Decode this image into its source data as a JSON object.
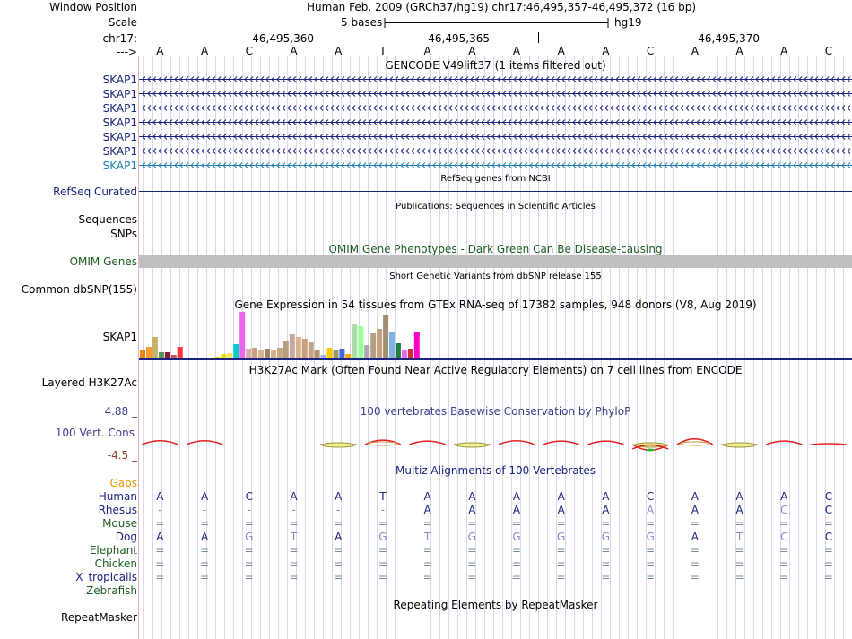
{
  "labels": {
    "window_position": "Window Position",
    "scale": "Scale",
    "chromosome": "chr17:",
    "strand_arrow": "--->"
  },
  "header": {
    "position_text": "Human Feb. 2009 (GRCh37/hg19)   chr17:46,495,357-46,495,372 (16 bp)",
    "scale_text": "5 bases",
    "assembly": "hg19",
    "ruler": [
      {
        "label": "46,495,360"
      },
      {
        "label": "46,495,365"
      },
      {
        "label": "46,495,370"
      }
    ]
  },
  "reference_sequence": [
    "A",
    "A",
    "C",
    "A",
    "A",
    "T",
    "A",
    "A",
    "A",
    "A",
    "A",
    "C",
    "A",
    "A",
    "A",
    "C"
  ],
  "tracks": {
    "gencode": {
      "title": "GENCODE V49lift37 (1 items filtered out)",
      "transcripts": [
        {
          "label": "SKAP1",
          "color": "#1a237e"
        },
        {
          "label": "SKAP1",
          "color": "#1a237e"
        },
        {
          "label": "SKAP1",
          "color": "#1a237e"
        },
        {
          "label": "SKAP1",
          "color": "#1a237e"
        },
        {
          "label": "SKAP1",
          "color": "#1a237e"
        },
        {
          "label": "SKAP1",
          "color": "#1a237e"
        },
        {
          "label": "SKAP1",
          "color": "#1f7fb4"
        }
      ]
    },
    "refseq": {
      "title": "RefSeq genes from NCBI",
      "label": "RefSeq Curated"
    },
    "publications": {
      "title": "Publications: Sequences in Scientific Articles",
      "label": "Sequences"
    },
    "snps": {
      "label": "SNPs"
    },
    "omim": {
      "title": "OMIM Gene Phenotypes - Dark Green Can Be Disease-causing",
      "label": "OMIM Genes"
    },
    "dbsnp": {
      "title": "Short Genetic Variants from dbSNP release 155",
      "label": "Common dbSNP(155)"
    },
    "gtex": {
      "title": "Gene Expression in 54 tissues from GTEx RNA-seq of 17382 samples, 948 donors (V8, Aug 2019)",
      "label": "SKAP1"
    },
    "h3k27ac": {
      "title": "H3K27Ac Mark (Often Found Near Active Regulatory Elements) on 7 cell lines from ENCODE",
      "label": "Layered H3K27Ac"
    },
    "conservation": {
      "title": "100 vertebrates Basewise Conservation by PhyloP",
      "label": "100 Vert. Cons",
      "ymax_label": "4.88 _",
      "ymin_label": "-4.5 _"
    },
    "multiz": {
      "title": "Multiz Alignments of 100 Vertebrates",
      "gaps_label": "Gaps",
      "species": [
        {
          "name": "Human",
          "color": "#1a237e",
          "bases": [
            "A",
            "A",
            "C",
            "A",
            "A",
            "T",
            "A",
            "A",
            "A",
            "A",
            "A",
            "C",
            "A",
            "A",
            "A",
            "C"
          ]
        },
        {
          "name": "Rhesus",
          "color": "#1a237e",
          "bases": [
            "-",
            "-",
            "-",
            "-",
            "-",
            "-",
            "A",
            "A",
            "A",
            "A",
            "A",
            "A",
            "A",
            "A",
            "C",
            "C"
          ]
        },
        {
          "name": "Mouse",
          "color": "#1b5e20",
          "bases": [
            "=",
            "=",
            "=",
            "=",
            "=",
            "=",
            "=",
            "=",
            "=",
            "=",
            "=",
            "=",
            "=",
            "=",
            "=",
            "="
          ]
        },
        {
          "name": "Dog",
          "color": "#1a237e",
          "bases": [
            "A",
            "A",
            "G",
            "T",
            "A",
            "G",
            "T",
            "G",
            "G",
            "G",
            "G",
            "G",
            "A",
            "T",
            "C",
            "C"
          ]
        },
        {
          "name": "Elephant",
          "color": "#1b5e20",
          "bases": [
            "=",
            "=",
            "=",
            "=",
            "=",
            "=",
            "=",
            "=",
            "=",
            "=",
            "=",
            "=",
            "=",
            "=",
            "=",
            "="
          ]
        },
        {
          "name": "Chicken",
          "color": "#1b5e20",
          "bases": [
            "=",
            "=",
            "=",
            "=",
            "=",
            "=",
            "=",
            "=",
            "=",
            "=",
            "=",
            "=",
            "=",
            "=",
            "=",
            "="
          ]
        },
        {
          "name": "X_tropicalis",
          "color": "#1a237e",
          "bases": [
            "=",
            "=",
            "=",
            "=",
            "=",
            "=",
            "=",
            "=",
            "=",
            "=",
            "=",
            "=",
            "=",
            "=",
            "=",
            "="
          ]
        },
        {
          "name": "Zebrafish",
          "color": "#1b5e20",
          "bases": []
        }
      ]
    },
    "repeatmasker": {
      "title": "Repeating Elements by RepeatMasker",
      "label": "RepeatMasker"
    }
  },
  "gtex_expression": {
    "colors": [
      "#e6861c",
      "#ff9a33",
      "#c7b26b",
      "#4e9a56",
      "#8b1a3c",
      "#c25b5b",
      "#ff3333",
      "#999999",
      "#cc9966",
      "#c8a080",
      "#c0c0c0",
      "#9999ff",
      "#ffd700",
      "#e0e000",
      "#ffe066",
      "#00cccc",
      "#ee66ee",
      "#ddaaaa",
      "#c8a080",
      "#d9b38c",
      "#a08060",
      "#d2b48c",
      "#c8a87e",
      "#b3a080",
      "#c8a8a0",
      "#d9b38c",
      "#c8a080",
      "#c4a484",
      "#b39170",
      "#aaaaff",
      "#ffcc00",
      "#999966",
      "#4169e1",
      "#ffaa00",
      "#aaddaa",
      "#99ff99",
      "#aaaaaa",
      "#b3a080",
      "#c8a080",
      "#a08f70",
      "#7fb2e5",
      "#1f7f3f",
      "#ee66ee",
      "#cc3333",
      "#ff00cc"
    ],
    "values": [
      9,
      13,
      24,
      7,
      7,
      4,
      13,
      1,
      1,
      1,
      1,
      1,
      2,
      5,
      6,
      16,
      52,
      11,
      12,
      9,
      11,
      10,
      12,
      20,
      27,
      24,
      22,
      18,
      10,
      4,
      12,
      9,
      11,
      5,
      38,
      36,
      15,
      28,
      33,
      48,
      30,
      17,
      10,
      11,
      30
    ]
  },
  "conservation_scores": [
    1.2,
    1.2,
    -0.2,
    0,
    -0.5,
    1.4,
    1.1,
    -0.3,
    1.2,
    1.1,
    1.1,
    -1.8,
    1.8,
    -0.4,
    1.1,
    0.3
  ]
}
